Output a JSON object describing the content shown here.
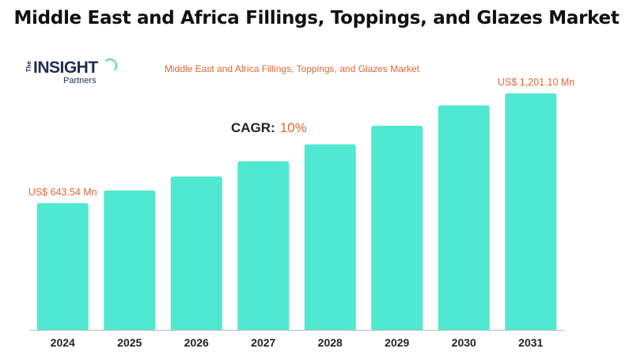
{
  "page": {
    "title": "Middle East and Africa Fillings, Toppings, and Glazes Market"
  },
  "logo": {
    "the": "The",
    "insight": "INSIGHT",
    "partners": "Partners"
  },
  "cagr": {
    "label": "CAGR:",
    "value": "10%"
  },
  "colors": {
    "bar": "#50e8d0",
    "accent": "#e0673a",
    "axis": "#bbbbbb",
    "tick_text": "#222222"
  },
  "chart_data": {
    "type": "bar",
    "title": "Middle East and Africa Fillings, Toppings, and Glazes Market",
    "xlabel": "",
    "ylabel": "",
    "categories": [
      "2024",
      "2025",
      "2026",
      "2027",
      "2028",
      "2029",
      "2030",
      "2031"
    ],
    "values": [
      643.54,
      707.9,
      778.7,
      856.5,
      942.2,
      1036.4,
      1140.0,
      1201.1
    ],
    "ylim": [
      0,
      1201.1
    ],
    "grid": false,
    "data_labels": [
      {
        "category": "2024",
        "text": "US$ 643.54 Mn"
      },
      {
        "category": "2031",
        "text": "US$ 1,201.10 Mn"
      }
    ]
  }
}
